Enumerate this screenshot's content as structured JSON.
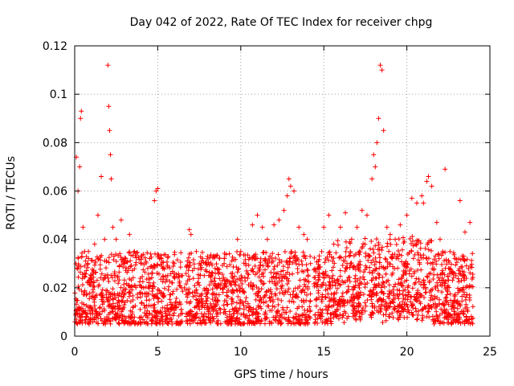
{
  "chart_data": {
    "type": "scatter",
    "title": "Day 042 of 2022, Rate Of TEC Index for receiver chpg",
    "xlabel": "GPS time / hours",
    "ylabel": "ROTI / TECUs",
    "xlim": [
      0,
      25
    ],
    "ylim": [
      0,
      0.12
    ],
    "xticks": [
      0,
      5,
      10,
      15,
      20,
      25
    ],
    "yticks": [
      0,
      0.02,
      0.04,
      0.06,
      0.08,
      0.1,
      0.12
    ],
    "xtick_labels": [
      "0",
      "5",
      "10",
      "15",
      "20",
      "25"
    ],
    "ytick_labels": [
      "0",
      "0.02",
      "0.04",
      "0.06",
      "0.08",
      "0.1",
      "0.12"
    ],
    "grid": true,
    "marker": "+",
    "color": "#ff0000",
    "series": [
      {
        "name": "ROTI",
        "x": [
          0.1,
          0.2,
          0.3,
          0.35,
          0.4,
          0.5,
          0.6,
          0.8,
          1.0,
          1.2,
          1.4,
          1.6,
          1.8,
          2.0,
          2.05,
          2.1,
          2.15,
          2.2,
          2.3,
          2.5,
          2.8,
          3.0,
          3.3,
          3.6,
          4.0,
          4.4,
          4.8,
          4.9,
          5.0,
          5.1,
          5.3,
          5.6,
          6.0,
          6.3,
          6.6,
          6.9,
          7.0,
          7.2,
          7.5,
          7.8,
          8.0,
          8.3,
          8.6,
          9.0,
          9.5,
          9.8,
          10.0,
          10.3,
          10.7,
          11.0,
          11.3,
          11.6,
          12.0,
          12.3,
          12.6,
          12.8,
          12.9,
          13.0,
          13.2,
          13.5,
          13.8,
          14.0,
          14.2,
          14.6,
          15.0,
          15.3,
          15.6,
          16.0,
          16.3,
          16.6,
          17.0,
          17.3,
          17.6,
          17.9,
          18.0,
          18.1,
          18.2,
          18.3,
          18.4,
          18.5,
          18.6,
          18.8,
          19.0,
          19.3,
          19.6,
          20.0,
          20.3,
          20.6,
          20.9,
          21.0,
          21.2,
          21.3,
          21.5,
          21.8,
          22.0,
          22.3,
          22.6,
          22.9,
          23.2,
          23.5,
          23.8
        ],
        "y": [
          0.074,
          0.06,
          0.07,
          0.09,
          0.093,
          0.045,
          0.035,
          0.03,
          0.025,
          0.038,
          0.05,
          0.066,
          0.04,
          0.112,
          0.095,
          0.085,
          0.075,
          0.065,
          0.045,
          0.04,
          0.048,
          0.03,
          0.042,
          0.035,
          0.03,
          0.028,
          0.056,
          0.06,
          0.061,
          0.032,
          0.028,
          0.025,
          0.03,
          0.022,
          0.02,
          0.044,
          0.042,
          0.028,
          0.03,
          0.025,
          0.033,
          0.026,
          0.028,
          0.03,
          0.026,
          0.04,
          0.035,
          0.03,
          0.046,
          0.05,
          0.045,
          0.04,
          0.046,
          0.048,
          0.052,
          0.058,
          0.065,
          0.062,
          0.06,
          0.045,
          0.042,
          0.04,
          0.03,
          0.028,
          0.045,
          0.05,
          0.038,
          0.045,
          0.051,
          0.035,
          0.045,
          0.052,
          0.05,
          0.065,
          0.075,
          0.07,
          0.08,
          0.09,
          0.112,
          0.11,
          0.085,
          0.045,
          0.042,
          0.04,
          0.046,
          0.05,
          0.057,
          0.055,
          0.058,
          0.055,
          0.064,
          0.066,
          0.062,
          0.047,
          0.04,
          0.069,
          0.035,
          0.032,
          0.056,
          0.043,
          0.047
        ]
      }
    ],
    "baseline_band": {
      "note": "dense noise floor of points",
      "y_range": [
        0.005,
        0.035
      ],
      "gaps_hours": [
        [
          6.5,
          6.7
        ],
        [
          14.2,
          14.4
        ]
      ]
    }
  }
}
